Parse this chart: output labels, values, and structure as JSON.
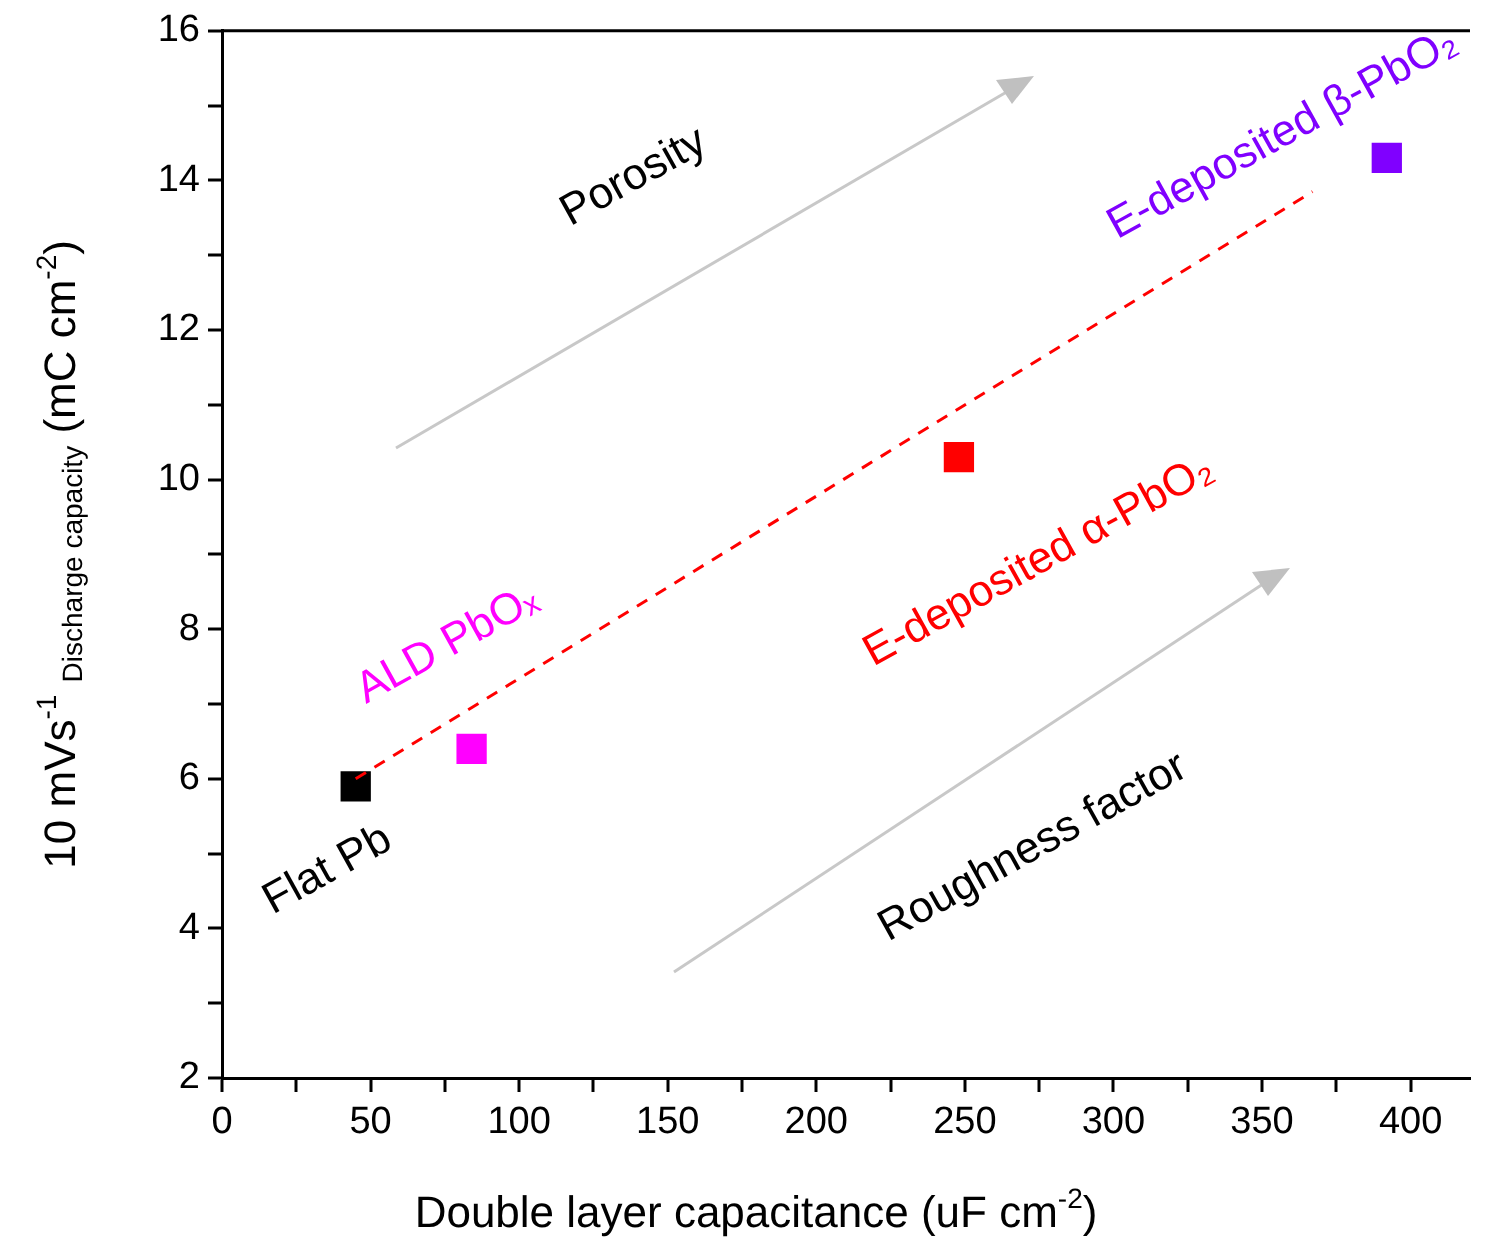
{
  "chart_data": {
    "type": "scatter",
    "xlabel": "Double layer capacitance (uF cm$^{-2}$)",
    "ylabel": "10 mVs$^{-1}$ $_{Discharge capacity}$ (mC cm$^{-2}$)",
    "xlim": [
      0,
      420
    ],
    "xticks": [
      0,
      {
        "value": 25,
        "label": null
      },
      50,
      {
        "value": 75,
        "label": null
      },
      100,
      {
        "value": 125,
        "label": null
      },
      150,
      {
        "value": 175,
        "label": null
      },
      200,
      {
        "value": 225,
        "label": null
      },
      250,
      {
        "value": 275,
        "label": null
      },
      300,
      {
        "value": 325,
        "label": null
      },
      350,
      {
        "value": 375,
        "label": null
      },
      400
    ],
    "ylim": [
      2,
      16
    ],
    "yticks": [
      2,
      {
        "value": 3,
        "label": null
      },
      4,
      {
        "value": 5,
        "label": null
      },
      6,
      {
        "value": 7,
        "label": null
      },
      8,
      {
        "value": 9,
        "label": null
      },
      10,
      {
        "value": 11,
        "label": null
      },
      12,
      {
        "value": 13,
        "label": null
      },
      14,
      {
        "value": 15,
        "label": null
      },
      16
    ],
    "marker": "square",
    "series": [
      {
        "name": "Flat Pb",
        "color": "#000000",
        "x": [
          45
        ],
        "values": [
          5.9
        ]
      },
      {
        "name": "ALD PbOₓ",
        "color": "#ff00ff",
        "x": [
          84
        ],
        "values": [
          6.4
        ]
      },
      {
        "name": "E-deposited α-PbO₂",
        "color": "#ff0000",
        "x": [
          248
        ],
        "values": [
          10.3
        ]
      },
      {
        "name": "E-deposited β-PbO₂",
        "color": "#8000ff",
        "x": [
          392
        ],
        "values": [
          14.3
        ]
      },
      {
        "type": "line",
        "color": "#ff0000",
        "line_style": "dashed",
        "marker": "none",
        "x": [
          45,
          367
        ],
        "values": [
          6,
          13.85
        ]
      }
    ],
    "annotations": [
      "Porosity",
      "Roughness factor"
    ]
  }
}
